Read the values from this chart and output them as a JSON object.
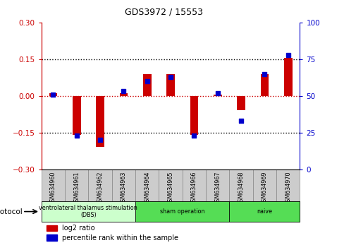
{
  "title": "GDS3972 / 15553",
  "samples": [
    "GSM634960",
    "GSM634961",
    "GSM634962",
    "GSM634963",
    "GSM634964",
    "GSM634965",
    "GSM634966",
    "GSM634967",
    "GSM634968",
    "GSM634969",
    "GSM634970"
  ],
  "log2_ratio": [
    0.01,
    -0.16,
    -0.21,
    0.01,
    0.09,
    0.09,
    -0.16,
    0.005,
    -0.06,
    0.09,
    0.155
  ],
  "percentile_rank": [
    51,
    23,
    20,
    53,
    60,
    63,
    23,
    52,
    33,
    65,
    78
  ],
  "ylim_left": [
    -0.3,
    0.3
  ],
  "ylim_right": [
    0,
    100
  ],
  "yticks_left": [
    -0.3,
    -0.15,
    0.0,
    0.15,
    0.3
  ],
  "yticks_right": [
    0,
    25,
    50,
    75,
    100
  ],
  "bar_color": "#cc0000",
  "dot_color": "#0000cc",
  "hline_color_zero": "#cc0000",
  "hline_color_other": "#000000",
  "groups": [
    {
      "label": "ventrolateral thalamus stimulation\n(DBS)",
      "indices": [
        0,
        1,
        2,
        3
      ],
      "color": "#ccffcc"
    },
    {
      "label": "sham operation",
      "indices": [
        4,
        5,
        6,
        7
      ],
      "color": "#55dd55"
    },
    {
      "label": "naive",
      "indices": [
        8,
        9,
        10
      ],
      "color": "#55dd55"
    }
  ],
  "protocol_label": "protocol",
  "legend_labels": [
    "log2 ratio",
    "percentile rank within the sample"
  ],
  "bar_width": 0.35,
  "dot_size": 18,
  "tick_box_color": "#cccccc",
  "tick_box_edge": "#888888"
}
